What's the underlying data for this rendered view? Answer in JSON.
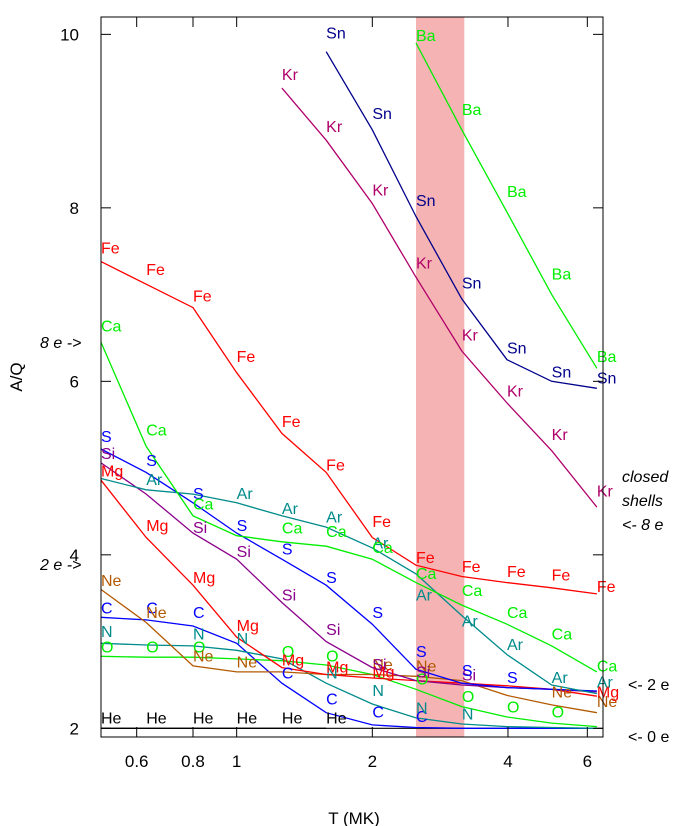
{
  "chart_data": {
    "type": "line",
    "title": "",
    "xlabel": "T (MK)",
    "ylabel": "A/Q",
    "x_scale": "log",
    "xlim": [
      0.5,
      6.5
    ],
    "ylim": [
      1.9,
      10.2
    ],
    "grid": false,
    "x_ticks": [
      0.6,
      0.8,
      1,
      2,
      4,
      6
    ],
    "x_tick_labels": [
      "0.6",
      "0.8",
      "1",
      "2",
      "4",
      "6"
    ],
    "y_ticks": [
      2,
      4,
      6,
      8,
      10
    ],
    "y_tick_labels": [
      "2",
      "4",
      "6",
      "8",
      "10"
    ],
    "shaded_band": {
      "x": [
        2.5,
        3.2
      ],
      "color": "#f4a9a9"
    },
    "baseline": {
      "y": 2.0,
      "color": "#000000"
    },
    "x": [
      0.5,
      0.63,
      0.8,
      1.0,
      1.26,
      1.58,
      2.0,
      2.5,
      3.16,
      3.98,
      5.0,
      6.3
    ],
    "series": [
      {
        "name": "He",
        "color": "#000000",
        "points": [
          [
            0.5,
            2.0
          ],
          [
            0.63,
            2.0
          ],
          [
            0.8,
            2.0
          ],
          [
            1.0,
            2.0
          ],
          [
            1.26,
            2.0
          ],
          [
            1.58,
            2.0
          ]
        ]
      },
      {
        "name": "C",
        "color": "#0000ff",
        "points": [
          [
            0.5,
            3.28
          ],
          [
            0.63,
            3.25
          ],
          [
            0.8,
            3.18
          ],
          [
            1.0,
            2.98
          ],
          [
            1.26,
            2.52
          ],
          [
            1.58,
            2.18
          ],
          [
            2.0,
            2.04
          ],
          [
            2.5,
            2.01
          ],
          [
            3.16,
            2.0
          ],
          [
            3.98,
            2.0
          ],
          [
            5.0,
            2.0
          ],
          [
            6.3,
            2.0
          ]
        ]
      },
      {
        "name": "N",
        "color": "#008b8b",
        "points": [
          [
            0.5,
            2.98
          ],
          [
            0.63,
            2.96
          ],
          [
            0.8,
            2.95
          ],
          [
            1.0,
            2.9
          ],
          [
            1.26,
            2.8
          ],
          [
            1.58,
            2.52
          ],
          [
            2.0,
            2.28
          ],
          [
            2.5,
            2.12
          ],
          [
            3.16,
            2.05
          ],
          [
            3.98,
            2.02
          ],
          [
            5.0,
            2.01
          ],
          [
            6.3,
            2.0
          ]
        ]
      },
      {
        "name": "O",
        "color": "#00ee00",
        "points": [
          [
            0.5,
            2.83
          ],
          [
            0.63,
            2.82
          ],
          [
            0.8,
            2.82
          ],
          [
            1.0,
            2.8
          ],
          [
            1.26,
            2.78
          ],
          [
            1.58,
            2.73
          ],
          [
            2.0,
            2.62
          ],
          [
            2.5,
            2.45
          ],
          [
            3.16,
            2.25
          ],
          [
            3.98,
            2.13
          ],
          [
            5.0,
            2.06
          ],
          [
            6.3,
            2.02
          ]
        ]
      },
      {
        "name": "Ne",
        "color": "#b35900",
        "points": [
          [
            0.5,
            3.6
          ],
          [
            0.63,
            3.22
          ],
          [
            0.8,
            2.72
          ],
          [
            1.0,
            2.65
          ],
          [
            1.26,
            2.65
          ],
          [
            1.58,
            2.62
          ],
          [
            2.0,
            2.62
          ],
          [
            2.5,
            2.6
          ],
          [
            3.16,
            2.55
          ],
          [
            3.98,
            2.38
          ],
          [
            5.0,
            2.27
          ],
          [
            6.3,
            2.18
          ]
        ]
      },
      {
        "name": "Mg",
        "color": "#ff0000",
        "points": [
          [
            0.5,
            4.86
          ],
          [
            0.63,
            4.2
          ],
          [
            0.8,
            3.65
          ],
          [
            1.0,
            3.05
          ],
          [
            1.26,
            2.7
          ],
          [
            1.58,
            2.62
          ],
          [
            2.0,
            2.58
          ],
          [
            2.5,
            2.55
          ],
          [
            3.16,
            2.52
          ],
          [
            3.98,
            2.49
          ],
          [
            5.0,
            2.45
          ],
          [
            6.3,
            2.37
          ]
        ]
      },
      {
        "name": "Si",
        "color": "#8b008b",
        "points": [
          [
            0.5,
            5.06
          ],
          [
            0.63,
            4.7
          ],
          [
            0.8,
            4.25
          ],
          [
            1.0,
            3.95
          ],
          [
            1.26,
            3.45
          ],
          [
            1.58,
            3.0
          ],
          [
            2.0,
            2.7
          ],
          [
            2.5,
            2.55
          ],
          [
            3.16,
            2.5
          ],
          [
            3.98,
            2.47
          ],
          [
            5.0,
            2.45
          ],
          [
            6.3,
            2.42
          ]
        ]
      },
      {
        "name": "S",
        "color": "#0000ff",
        "points": [
          [
            0.5,
            5.22
          ],
          [
            0.63,
            4.95
          ],
          [
            0.8,
            4.6
          ],
          [
            1.0,
            4.25
          ],
          [
            1.26,
            3.95
          ],
          [
            1.58,
            3.65
          ],
          [
            2.0,
            3.2
          ],
          [
            2.5,
            2.68
          ],
          [
            3.16,
            2.52
          ],
          [
            3.98,
            2.47
          ],
          [
            5.0,
            2.45
          ],
          [
            6.3,
            2.43
          ]
        ]
      },
      {
        "name": "Ar",
        "color": "#008b8b",
        "points": [
          [
            0.5,
            4.88
          ],
          [
            0.63,
            4.75
          ],
          [
            0.8,
            4.7
          ],
          [
            1.0,
            4.6
          ],
          [
            1.26,
            4.45
          ],
          [
            1.58,
            4.32
          ],
          [
            2.0,
            4.08
          ],
          [
            2.5,
            3.78
          ],
          [
            3.16,
            3.3
          ],
          [
            3.98,
            2.85
          ],
          [
            5.0,
            2.5
          ],
          [
            6.3,
            2.4
          ]
        ]
      },
      {
        "name": "Ca",
        "color": "#00ee00",
        "points": [
          [
            0.5,
            6.45
          ],
          [
            0.63,
            5.25
          ],
          [
            0.8,
            4.45
          ],
          [
            1.0,
            4.22
          ],
          [
            1.26,
            4.15
          ],
          [
            1.58,
            4.1
          ],
          [
            2.0,
            3.95
          ],
          [
            2.5,
            3.68
          ],
          [
            3.16,
            3.42
          ],
          [
            3.98,
            3.2
          ],
          [
            5.0,
            2.95
          ],
          [
            6.3,
            2.65
          ]
        ]
      },
      {
        "name": "Fe",
        "color": "#ff0000",
        "points": [
          [
            0.5,
            7.38
          ],
          [
            0.63,
            7.12
          ],
          [
            0.8,
            6.85
          ],
          [
            1.0,
            6.1
          ],
          [
            1.26,
            5.4
          ],
          [
            1.58,
            4.95
          ],
          [
            2.0,
            4.2
          ],
          [
            2.5,
            3.88
          ],
          [
            3.16,
            3.75
          ],
          [
            3.98,
            3.68
          ],
          [
            5.0,
            3.62
          ],
          [
            6.3,
            3.55
          ]
        ]
      },
      {
        "name": "Kr",
        "color": "#b0006a",
        "points": [
          [
            1.26,
            9.38
          ],
          [
            1.58,
            8.78
          ],
          [
            2.0,
            8.05
          ],
          [
            2.5,
            7.2
          ],
          [
            3.16,
            6.35
          ],
          [
            3.98,
            5.75
          ],
          [
            5.0,
            5.2
          ],
          [
            6.3,
            4.55
          ]
        ]
      },
      {
        "name": "Sn",
        "color": "#00008b",
        "points": [
          [
            1.58,
            9.8
          ],
          [
            2.0,
            8.9
          ],
          [
            2.5,
            7.9
          ],
          [
            3.16,
            6.95
          ],
          [
            3.98,
            6.25
          ],
          [
            5.0,
            6.0
          ],
          [
            6.3,
            5.92
          ]
        ]
      },
      {
        "name": "Ba",
        "color": "#00ee00",
        "points": [
          [
            2.5,
            9.9
          ],
          [
            3.16,
            8.9
          ],
          [
            3.98,
            7.95
          ],
          [
            5.0,
            7.0
          ],
          [
            6.3,
            6.15
          ]
        ]
      }
    ],
    "labels": [
      {
        "t": "He",
        "c": "#000000",
        "pts": [
          [
            0.5,
            2.03
          ],
          [
            0.63,
            2.03
          ],
          [
            0.8,
            2.03
          ],
          [
            1.0,
            2.03
          ],
          [
            1.26,
            2.03
          ],
          [
            1.58,
            2.03
          ]
        ]
      },
      {
        "t": "C",
        "c": "#0000ff",
        "pts": [
          [
            0.5,
            3.3
          ],
          [
            0.63,
            3.3
          ],
          [
            0.8,
            3.25
          ],
          [
            1.26,
            2.55
          ],
          [
            1.58,
            2.25
          ],
          [
            2.0,
            2.1
          ],
          [
            2.5,
            2.05
          ]
        ]
      },
      {
        "t": "N",
        "c": "#008b8b",
        "pts": [
          [
            0.5,
            3.03
          ],
          [
            0.8,
            3.0
          ],
          [
            1.0,
            2.95
          ],
          [
            1.58,
            2.55
          ],
          [
            2.0,
            2.35
          ],
          [
            2.5,
            2.15
          ],
          [
            3.16,
            2.08
          ]
        ]
      },
      {
        "t": "O",
        "c": "#00ee00",
        "pts": [
          [
            0.5,
            2.85
          ],
          [
            0.63,
            2.85
          ],
          [
            0.8,
            2.85
          ],
          [
            1.26,
            2.8
          ],
          [
            1.58,
            2.75
          ],
          [
            2.5,
            2.48
          ],
          [
            3.16,
            2.28
          ],
          [
            3.98,
            2.16
          ],
          [
            5.0,
            2.1
          ]
        ]
      },
      {
        "t": "Ne",
        "c": "#b35900",
        "pts": [
          [
            0.5,
            3.62
          ],
          [
            0.63,
            3.25
          ],
          [
            0.8,
            2.75
          ],
          [
            1.0,
            2.68
          ],
          [
            2.0,
            2.65
          ],
          [
            2.5,
            2.63
          ],
          [
            5.0,
            2.33
          ],
          [
            6.3,
            2.22
          ]
        ]
      },
      {
        "t": "Mg",
        "c": "#ff0000",
        "pts": [
          [
            0.5,
            4.88
          ],
          [
            0.63,
            4.25
          ],
          [
            0.8,
            3.65
          ],
          [
            1.0,
            3.1
          ],
          [
            1.26,
            2.7
          ],
          [
            1.58,
            2.62
          ],
          [
            2.0,
            2.56
          ],
          [
            6.3,
            2.33
          ]
        ]
      },
      {
        "t": "Si",
        "c": "#8b008b",
        "pts": [
          [
            0.5,
            5.08
          ],
          [
            0.8,
            4.23
          ],
          [
            1.0,
            3.95
          ],
          [
            1.26,
            3.45
          ],
          [
            1.58,
            3.05
          ],
          [
            2.0,
            2.65
          ],
          [
            2.5,
            2.56
          ],
          [
            3.16,
            2.53
          ]
        ]
      },
      {
        "t": "S",
        "c": "#0000ff",
        "pts": [
          [
            0.5,
            5.28
          ],
          [
            0.63,
            5.0
          ],
          [
            0.8,
            4.62
          ],
          [
            1.0,
            4.25
          ],
          [
            1.26,
            3.98
          ],
          [
            1.58,
            3.65
          ],
          [
            2.0,
            3.25
          ],
          [
            2.5,
            2.8
          ],
          [
            3.16,
            2.58
          ],
          [
            3.98,
            2.5
          ]
        ]
      },
      {
        "t": "Ar",
        "c": "#008b8b",
        "pts": [
          [
            0.63,
            4.78
          ],
          [
            1.0,
            4.62
          ],
          [
            1.26,
            4.45
          ],
          [
            1.58,
            4.35
          ],
          [
            2.0,
            4.05
          ],
          [
            2.5,
            3.45
          ],
          [
            3.16,
            3.15
          ],
          [
            3.98,
            2.88
          ],
          [
            5.0,
            2.5
          ],
          [
            6.3,
            2.45
          ]
        ]
      },
      {
        "t": "Ca",
        "c": "#00ee00",
        "pts": [
          [
            0.5,
            6.55
          ],
          [
            0.63,
            5.35
          ],
          [
            0.8,
            4.5
          ],
          [
            1.26,
            4.22
          ],
          [
            1.58,
            4.18
          ],
          [
            2.0,
            4.0
          ],
          [
            2.5,
            3.7
          ],
          [
            3.16,
            3.5
          ],
          [
            3.98,
            3.25
          ],
          [
            5.0,
            3.0
          ],
          [
            6.3,
            2.63
          ]
        ]
      },
      {
        "t": "Fe",
        "c": "#ff0000",
        "pts": [
          [
            0.5,
            7.45
          ],
          [
            0.63,
            7.2
          ],
          [
            0.8,
            6.9
          ],
          [
            1.0,
            6.2
          ],
          [
            1.26,
            5.45
          ],
          [
            1.58,
            4.95
          ],
          [
            2.0,
            4.3
          ],
          [
            2.5,
            3.88
          ],
          [
            3.16,
            3.78
          ],
          [
            3.98,
            3.72
          ],
          [
            5.0,
            3.68
          ],
          [
            6.3,
            3.55
          ]
        ]
      },
      {
        "t": "Kr",
        "c": "#b0006a",
        "pts": [
          [
            1.26,
            9.45
          ],
          [
            1.58,
            8.85
          ],
          [
            2.0,
            8.12
          ],
          [
            2.5,
            7.28
          ],
          [
            3.16,
            6.45
          ],
          [
            3.98,
            5.8
          ],
          [
            5.0,
            5.3
          ],
          [
            6.3,
            4.65
          ]
        ]
      },
      {
        "t": "Sn",
        "c": "#00008b",
        "pts": [
          [
            1.58,
            9.93
          ],
          [
            2.0,
            9.0
          ],
          [
            2.5,
            8.0
          ],
          [
            3.16,
            7.05
          ],
          [
            3.98,
            6.3
          ],
          [
            5.0,
            6.02
          ],
          [
            6.3,
            5.95
          ]
        ]
      },
      {
        "t": "Ba",
        "c": "#00ee00",
        "pts": [
          [
            2.5,
            9.9
          ],
          [
            3.16,
            9.05
          ],
          [
            3.98,
            8.1
          ],
          [
            5.0,
            7.15
          ],
          [
            6.3,
            6.2
          ]
        ]
      }
    ],
    "annotations": {
      "closed_line1": "closed",
      "closed_line2": "shells",
      "closed_line3": "<- 8 e",
      "marker_8e": "8 e ->",
      "marker_2e_left": "2 e ->",
      "marker_2e_right": "<- 2 e",
      "marker_0e_right": "<- 0 e"
    }
  }
}
